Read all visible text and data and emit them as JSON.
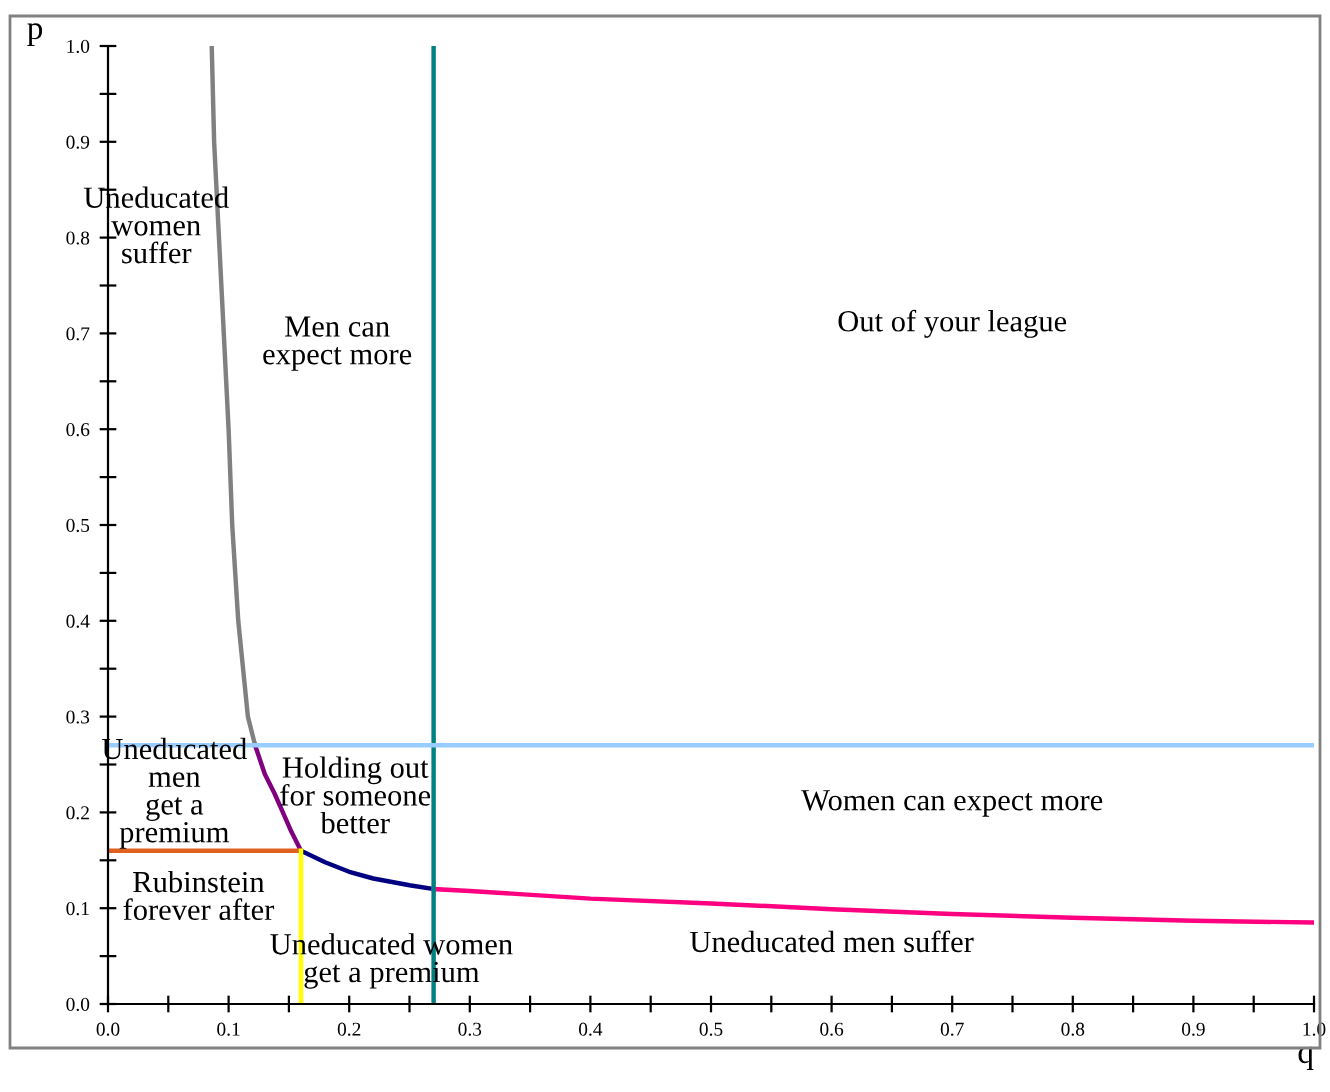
{
  "chart_data": {
    "type": "line",
    "xlabel": "q",
    "ylabel": "p",
    "xlim": [
      0,
      1
    ],
    "ylim": [
      0,
      1
    ],
    "xticks": [
      {
        "value": 0,
        "label": "0.0"
      },
      {
        "value": 0.05,
        "label": null
      },
      0.1,
      {
        "value": 0.15,
        "label": null
      },
      0.2,
      {
        "value": 0.25,
        "label": null
      },
      0.3,
      {
        "value": 0.35,
        "label": null
      },
      0.4,
      {
        "value": 0.45,
        "label": null
      },
      0.5,
      {
        "value": 0.55,
        "label": null
      },
      0.6,
      {
        "value": 0.65,
        "label": null
      },
      0.7,
      {
        "value": 0.75,
        "label": null
      },
      0.8,
      {
        "value": 0.85,
        "label": null
      },
      0.9,
      {
        "value": 0.95,
        "label": null
      },
      {
        "value": 1,
        "label": "1.0"
      }
    ],
    "yticks": [
      {
        "value": 0,
        "label": "0.0"
      },
      {
        "value": 0.05,
        "label": null
      },
      0.1,
      {
        "value": 0.15,
        "label": null
      },
      0.2,
      {
        "value": 0.25,
        "label": null
      },
      0.3,
      {
        "value": 0.35,
        "label": null
      },
      0.4,
      {
        "value": 0.45,
        "label": null
      },
      0.5,
      {
        "value": 0.55,
        "label": null
      },
      0.6,
      {
        "value": 0.65,
        "label": null
      },
      0.7,
      {
        "value": 0.75,
        "label": null
      },
      0.8,
      {
        "value": 0.85,
        "label": null
      },
      0.9,
      {
        "value": 0.95,
        "label": null
      },
      {
        "value": 1,
        "label": "1.0"
      }
    ],
    "grid": false,
    "legend": false,
    "marker": "none",
    "line_style": "solid",
    "series": [
      {
        "color": "#808080",
        "x": [
          0.086,
          0.088,
          0.092,
          0.096,
          0.1,
          0.103,
          0.108,
          0.116,
          0.122
        ],
        "values": [
          1.0,
          0.9,
          0.8,
          0.7,
          0.6,
          0.5,
          0.4,
          0.3,
          0.27
        ]
      },
      {
        "color": "#800080",
        "x": [
          0.122,
          0.13,
          0.138,
          0.145,
          0.152,
          0.16
        ],
        "values": [
          0.27,
          0.24,
          0.22,
          0.2,
          0.18,
          0.16
        ]
      },
      {
        "color": "#000080",
        "x": [
          0.16,
          0.18,
          0.2,
          0.22,
          0.25,
          0.27
        ],
        "values": [
          0.16,
          0.148,
          0.138,
          0.131,
          0.124,
          0.12
        ]
      },
      {
        "color": "#ff0080",
        "x": [
          0.27,
          0.3,
          0.4,
          0.5,
          0.6,
          0.7,
          0.8,
          0.9,
          1.0
        ],
        "values": [
          0.12,
          0.118,
          0.11,
          0.105,
          0.099,
          0.094,
          0.09,
          0.087,
          0.085
        ]
      },
      {
        "color": "#e06020",
        "x": [
          0.0,
          0.16
        ],
        "values": [
          0.16,
          0.16
        ]
      },
      {
        "color": "#ffff00",
        "x": [
          0.16,
          0.16
        ],
        "values": [
          0.0,
          0.16
        ]
      }
    ],
    "ref_lines": [
      {
        "axis": "x",
        "value": 0.27,
        "color": "#008080"
      },
      {
        "axis": "y",
        "value": 0.27,
        "color": "#99ccff"
      }
    ],
    "annotations": [
      "Uneducated\nwomen\nsuffer",
      "Men can\nexpect more",
      "Out of your league",
      "Uneducated\nmen\nget a\npremium",
      "Holding out\nfor someone\nbetter",
      "Rubinstein\nforever after",
      "Uneducated women\nget a premium",
      "Women can expect more",
      "Uneducated men suffer"
    ]
  }
}
